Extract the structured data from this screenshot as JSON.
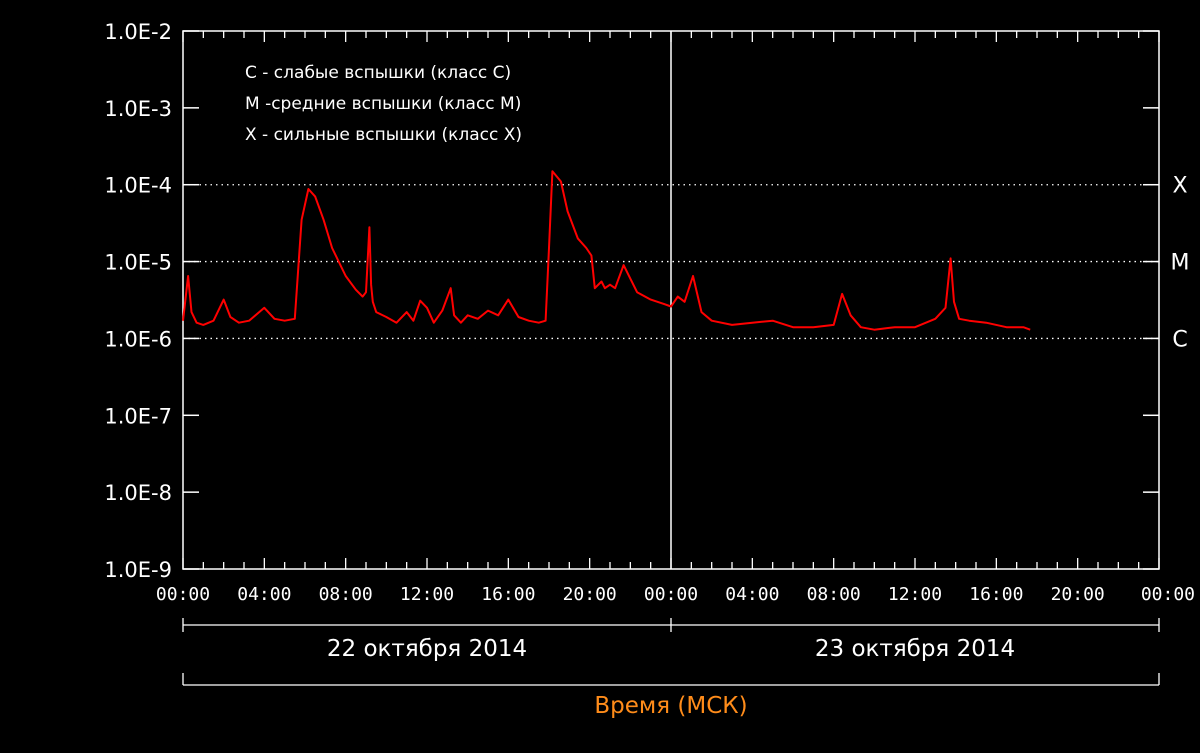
{
  "colors": {
    "background": "#000000",
    "axes": "#ffffff",
    "series": "#ff0000",
    "axis_title": "#ff8c1a"
  },
  "chart_data": {
    "type": "line",
    "title": "",
    "xlabel": "Время (МСК)",
    "ylabel": "",
    "y_scale": "log",
    "ylim": [
      1e-09,
      0.01
    ],
    "xlim": [
      "2014-10-22 00:00",
      "2014-10-24 00:00"
    ],
    "grid": false,
    "y_tick_labels": [
      "1.0E-9",
      "1.0E-8",
      "1.0E-7",
      "1.0E-6",
      "1.0E-5",
      "1.0E-4",
      "1.0E-3",
      "1.0E-2"
    ],
    "x_tick_labels": [
      "00:00",
      "04:00",
      "08:00",
      "12:00",
      "16:00",
      "20:00",
      "00:00",
      "04:00",
      "08:00",
      "12:00",
      "16:00",
      "20:00",
      "00:00"
    ],
    "date_labels": [
      "22 октября 2014",
      "23 октября 2014"
    ],
    "threshold_lines": [
      {
        "label": "X",
        "value": 0.0001
      },
      {
        "label": "M",
        "value": 1e-05
      },
      {
        "label": "C",
        "value": 1e-06
      }
    ],
    "legend_position": "top-left",
    "legend": [
      "C - слабые вспышки (класс C)",
      "M -средние вспышки (класс M)",
      "X - сильные вспышки (класс X)"
    ],
    "series": [
      {
        "x": [
          "2014-10-22 00:00",
          "2014-10-22 00:15",
          "2014-10-22 00:25",
          "2014-10-22 00:40",
          "2014-10-22 01:00",
          "2014-10-22 01:30",
          "2014-10-22 02:00",
          "2014-10-22 02:20",
          "2014-10-22 02:45",
          "2014-10-22 03:15",
          "2014-10-22 04:00",
          "2014-10-22 04:30",
          "2014-10-22 05:00",
          "2014-10-22 05:30",
          "2014-10-22 05:50",
          "2014-10-22 06:10",
          "2014-10-22 06:30",
          "2014-10-22 06:55",
          "2014-10-22 07:20",
          "2014-10-22 08:00",
          "2014-10-22 08:30",
          "2014-10-22 08:50",
          "2014-10-22 09:00",
          "2014-10-22 09:10",
          "2014-10-22 09:15",
          "2014-10-22 09:20",
          "2014-10-22 09:30",
          "2014-10-22 10:00",
          "2014-10-22 10:30",
          "2014-10-22 11:00",
          "2014-10-22 11:20",
          "2014-10-22 11:40",
          "2014-10-22 12:00",
          "2014-10-22 12:20",
          "2014-10-22 12:45",
          "2014-10-22 13:10",
          "2014-10-22 13:20",
          "2014-10-22 13:40",
          "2014-10-22 14:00",
          "2014-10-22 14:30",
          "2014-10-22 15:00",
          "2014-10-22 15:30",
          "2014-10-22 16:00",
          "2014-10-22 16:30",
          "2014-10-22 17:00",
          "2014-10-22 17:30",
          "2014-10-22 17:50",
          "2014-10-22 18:00",
          "2014-10-22 18:10",
          "2014-10-22 18:35",
          "2014-10-22 18:55",
          "2014-10-22 19:25",
          "2014-10-22 19:50",
          "2014-10-22 20:05",
          "2014-10-22 20:15",
          "2014-10-22 20:35",
          "2014-10-22 20:45",
          "2014-10-22 21:00",
          "2014-10-22 21:15",
          "2014-10-22 21:40",
          "2014-10-22 22:00",
          "2014-10-22 22:20",
          "2014-10-22 23:00",
          "2014-10-22 23:40",
          "2014-10-23 00:00",
          "2014-10-23 00:20",
          "2014-10-23 00:40",
          "2014-10-23 01:05",
          "2014-10-23 01:30",
          "2014-10-23 02:00",
          "2014-10-23 03:00",
          "2014-10-23 04:00",
          "2014-10-23 05:00",
          "2014-10-23 06:00",
          "2014-10-23 07:00",
          "2014-10-23 08:00",
          "2014-10-23 08:25",
          "2014-10-23 08:50",
          "2014-10-23 09:20",
          "2014-10-23 10:00",
          "2014-10-23 11:00",
          "2014-10-23 12:00",
          "2014-10-23 13:00",
          "2014-10-23 13:30",
          "2014-10-23 13:45",
          "2014-10-23 13:55",
          "2014-10-23 14:10",
          "2014-10-23 14:40",
          "2014-10-23 15:30",
          "2014-10-23 16:30",
          "2014-10-23 17:20",
          "2014-10-23 17:40"
        ],
        "y": [
          1.7e-06,
          6.5e-06,
          2.2e-06,
          1.6e-06,
          1.5e-06,
          1.7e-06,
          3.2e-06,
          1.9e-06,
          1.6e-06,
          1.7e-06,
          2.5e-06,
          1.8e-06,
          1.7e-06,
          1.8e-06,
          3.5e-05,
          8.8e-05,
          7e-05,
          3.5e-05,
          1.5e-05,
          6.5e-06,
          4.3e-06,
          3.5e-06,
          4e-06,
          2.8e-05,
          5e-06,
          3e-06,
          2.2e-06,
          1.9e-06,
          1.6e-06,
          2.2e-06,
          1.7e-06,
          3.1e-06,
          2.5e-06,
          1.6e-06,
          2.3e-06,
          4.5e-06,
          2e-06,
          1.6e-06,
          2e-06,
          1.8e-06,
          2.3e-06,
          2e-06,
          3.2e-06,
          1.9e-06,
          1.7e-06,
          1.6e-06,
          1.7e-06,
          1.5e-05,
          0.00015,
          0.00011,
          4.5e-05,
          2e-05,
          1.5e-05,
          1.2e-05,
          4.5e-06,
          5.5e-06,
          4.5e-06,
          5e-06,
          4.5e-06,
          9e-06,
          6e-06,
          4e-06,
          3.2e-06,
          2.8e-06,
          2.6e-06,
          3.5e-06,
          3e-06,
          6.5e-06,
          2.2e-06,
          1.7e-06,
          1.5e-06,
          1.6e-06,
          1.7e-06,
          1.4e-06,
          1.4e-06,
          1.5e-06,
          3.8e-06,
          2e-06,
          1.4e-06,
          1.3e-06,
          1.4e-06,
          1.4e-06,
          1.8e-06,
          2.5e-06,
          1.1e-05,
          3e-06,
          1.8e-06,
          1.7e-06,
          1.6e-06,
          1.4e-06,
          1.4e-06,
          1.3e-06
        ]
      }
    ]
  }
}
